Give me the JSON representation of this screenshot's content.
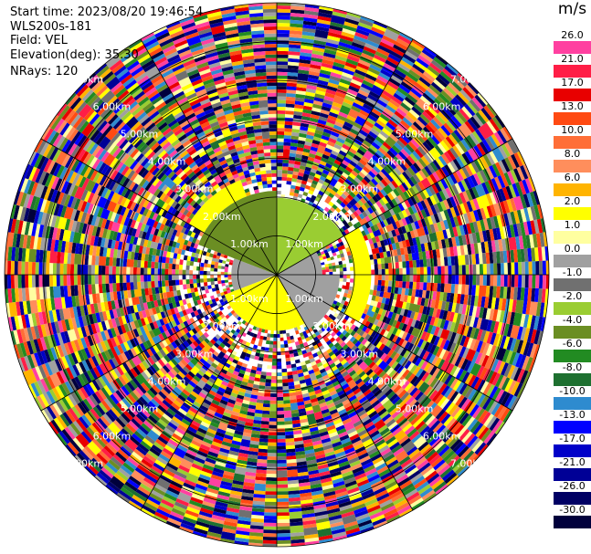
{
  "header": {
    "start_time": "Start time: 2023/08/20 19:46:54",
    "instrument": "WLS200s-181",
    "field": "Field: VEL",
    "elevation": "Elevation(deg): 35.30",
    "nrays": "NRays: 120"
  },
  "colorbar": {
    "unit": "m/s",
    "ticks": [
      "26.0",
      "21.0",
      "17.0",
      "13.0",
      "10.0",
      "8.0",
      "6.0",
      "2.0",
      "1.0",
      "0.0",
      "-1.0",
      "-2.0",
      "-4.0",
      "-6.0",
      "-8.0",
      "-10.0",
      "-13.0",
      "-17.0",
      "-21.0",
      "-26.0",
      "-30.0"
    ],
    "colors": [
      "#ff40a0",
      "#ff1e46",
      "#e80000",
      "#ff4a12",
      "#ff6e37",
      "#ff8e5c",
      "#ffb400",
      "#ffff00",
      "#ffffa0",
      "#a0a0a0",
      "#707070",
      "#9acd32",
      "#6b8e23",
      "#228b22",
      "#1e7030",
      "#2e8bcf",
      "#0000ff",
      "#0000c8",
      "#000096",
      "#000064",
      "#00003c"
    ]
  },
  "chart_data": {
    "type": "heatmap",
    "projection": "polar PPI",
    "nrays": 120,
    "range_ring_labels": [
      "1.00km",
      "2.00km",
      "3.00km",
      "4.00km",
      "5.00km",
      "6.00km",
      "7.00km"
    ],
    "range_rings_km": [
      1,
      2,
      3,
      4,
      5,
      6,
      7
    ],
    "max_range_km": 7.0,
    "value_unit": "m/s",
    "value_range": [
      -30.0,
      26.0
    ],
    "noise_beyond_km": 2.5,
    "inner_region": [
      {
        "azimuth_deg": [
          290,
          360
        ],
        "range_km": [
          0,
          2.2
        ],
        "value_ms": -4.0
      },
      {
        "azimuth_deg": [
          0,
          60
        ],
        "range_km": [
          0,
          2.0
        ],
        "value_ms": -2.0
      },
      {
        "azimuth_deg": [
          60,
          90
        ],
        "range_km": [
          0,
          1.2
        ],
        "value_ms": 0.0
      },
      {
        "azimuth_deg": [
          90,
          150
        ],
        "range_km": [
          0,
          1.6
        ],
        "value_ms": 0.0
      },
      {
        "azimuth_deg": [
          150,
          250
        ],
        "range_km": [
          0,
          1.4
        ],
        "value_ms": 2.0
      },
      {
        "azimuth_deg": [
          250,
          290
        ],
        "range_km": [
          0,
          1.2
        ],
        "value_ms": 0.0
      },
      {
        "azimuth_deg": [
          300,
          340
        ],
        "range_km": [
          2.2,
          2.6
        ],
        "value_ms": 2.0
      },
      {
        "azimuth_deg": [
          60,
          120
        ],
        "range_km": [
          2.0,
          2.4
        ],
        "value_ms": 2.0
      }
    ]
  }
}
